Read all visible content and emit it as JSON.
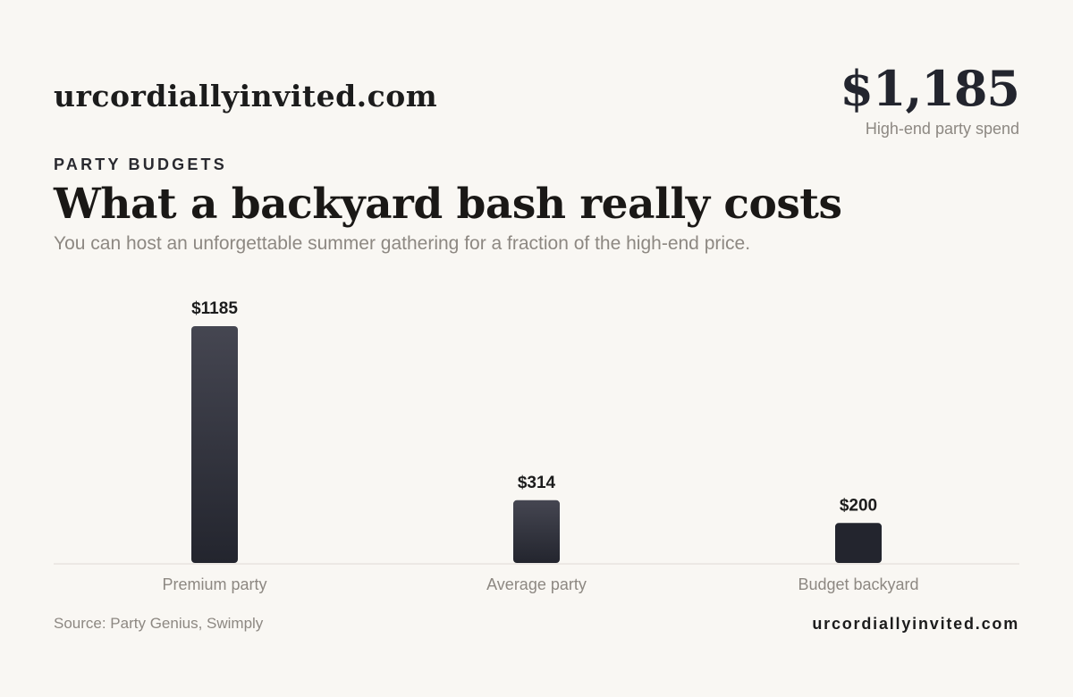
{
  "header": {
    "brand": "urcordiallyinvited.com",
    "stat_value": "$1,185",
    "stat_label": "High-end party spend"
  },
  "headline": {
    "eyebrow": "PARTY BUDGETS",
    "title": "What a backyard bash really costs",
    "subtitle": "You can host an unforgettable summer gathering for a fraction of the high-end price."
  },
  "chart_data": {
    "type": "bar",
    "title": "",
    "xlabel": "",
    "ylabel": "",
    "categories": [
      "Premium party",
      "Average party",
      "Budget backyard"
    ],
    "values": [
      1185,
      314,
      200
    ],
    "value_labels": [
      "$1185",
      "$314",
      "$200"
    ],
    "ylim": [
      0,
      1185
    ],
    "grid": false,
    "legend": "none",
    "colors": {
      "bar_top": "#454651",
      "bar_bottom": "#23252e",
      "bar_solid": "#23252e",
      "baseline": "#dedad4",
      "value_label": "#1c1c1c",
      "category_label": "#8d8882"
    }
  },
  "footer": {
    "source": "Source: Party Genius, Swimply",
    "brand": "urcordiallyinvited.com"
  },
  "theme": {
    "background": "#f9f7f3",
    "text_dark": "#1c1c1c",
    "text_muted": "#8d8882"
  }
}
